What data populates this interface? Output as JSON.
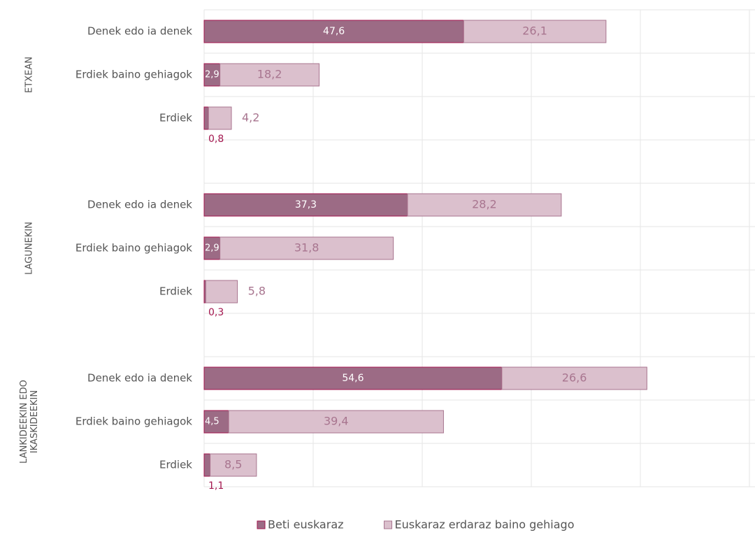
{
  "chart_data": {
    "type": "bar",
    "orientation": "horizontal",
    "stacked": true,
    "groups": [
      [
        "ETXEAN"
      ],
      [
        "LAGUNEKIN"
      ],
      [
        "LANKIDEEKIN EDO",
        "IKASKIDEEKIN"
      ]
    ],
    "categories": [
      "Denek edo ia denek",
      "Erdiek baino gehiagok",
      "Erdiek",
      "Denek edo ia denek",
      "Erdiek baino gehiagok",
      "Erdiek",
      "Denek edo ia denek",
      "Erdiek baino gehiagok",
      "Erdiek"
    ],
    "series": [
      {
        "name": "Beti euskaraz",
        "color": "#9c6b85",
        "edge": "#a3164e",
        "values": [
          47.6,
          2.9,
          0.8,
          37.3,
          2.9,
          0.3,
          54.6,
          4.5,
          1.1
        ],
        "value_labels": [
          "47,6",
          "2,9",
          "0,8",
          "37,3",
          "2,9",
          "0,3",
          "54,6",
          "4,5",
          "1,1"
        ]
      },
      {
        "name": "Euskaraz erdaraz baino gehiago",
        "color": "#dbc0cd",
        "edge": "#a8758f",
        "values": [
          26.1,
          18.2,
          4.2,
          28.2,
          31.8,
          5.8,
          26.6,
          39.4,
          8.5
        ],
        "value_labels": [
          "26,1",
          "18,2",
          "4,2",
          "28,2",
          "31,8",
          "5,8",
          "26,6",
          "39,4",
          "8,5"
        ]
      }
    ],
    "xlim": [
      0,
      100
    ],
    "xticks": [
      0,
      20,
      40,
      60,
      80,
      100
    ],
    "grid": true
  }
}
